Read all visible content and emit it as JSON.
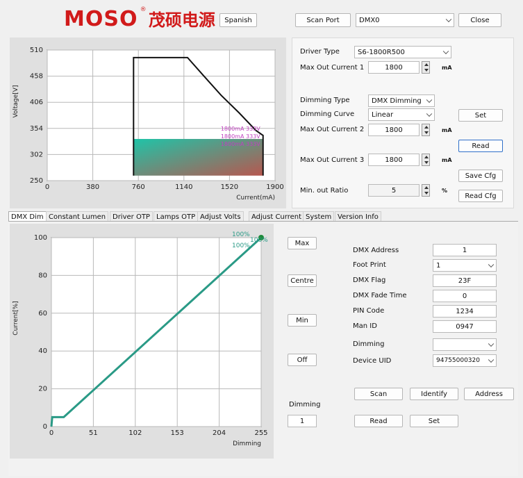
{
  "header": {
    "logo_text": "MOSO",
    "logo_cn": "茂硕电源",
    "language_button": "Spanish",
    "scan_port_button": "Scan Port",
    "port_value": "DMX0",
    "close_button": "Close"
  },
  "driver_panel": {
    "driver_type_label": "Driver Type",
    "driver_type_value": "S6-1800R500",
    "max_out_current_1_label": "Max Out Current 1",
    "max_out_current_1_value": "1800",
    "unit_ma": "mA",
    "dimming_type_label": "Dimming Type",
    "dimming_type_value": "DMX Dimming",
    "dimming_curve_label": "Dimming Curve",
    "dimming_curve_value": "Linear",
    "max_out_current_2_label": "Max Out Current 2",
    "max_out_current_2_value": "1800",
    "max_out_current_3_label": "Max Out Current 3",
    "max_out_current_3_value": "1800",
    "min_out_ratio_label": "Min. out Ratio",
    "min_out_ratio_value": "5",
    "unit_percent": "%",
    "set_button": "Set",
    "read_button": "Read",
    "save_cfg_button": "Save Cfg",
    "read_cfg_button": "Read Cfg"
  },
  "tabs": [
    "DMX Dim",
    "Constant Lumen",
    "Driver OTP",
    "Lamps OTP",
    "Adjust Volts",
    "Adjust Current",
    "System",
    "Version Info"
  ],
  "dmx_panel": {
    "max_button": "Max",
    "centre_button": "Centre",
    "min_button": "Min",
    "off_button": "Off",
    "dimming_label": "Dimming",
    "dimming_value": "1",
    "dmx_address_label": "DMX Address",
    "dmx_address_value": "1",
    "foot_print_label": "Foot Print",
    "foot_print_value": "1",
    "dmx_flag_label": "DMX Flag",
    "dmx_flag_value": "23F",
    "dmx_fade_time_label": "DMX Fade Time",
    "dmx_fade_time_value": "0",
    "pin_code_label": "PIN Code",
    "pin_code_value": "1234",
    "man_id_label": "Man ID",
    "man_id_value": "0947",
    "dimming_select_label": "Dimming",
    "dimming_select_value": "",
    "device_uid_label": "Device UID",
    "device_uid_value": "94755000320",
    "scan_button": "Scan",
    "identify_button": "Identify",
    "address_button": "Address",
    "read_button": "Read",
    "set_button": "Set"
  },
  "chart_data": [
    {
      "type": "line",
      "ylabel": "Voltage[V]",
      "xlabel": "Current(mA)",
      "xlim": [
        0,
        1900
      ],
      "ylim": [
        250,
        510
      ],
      "xticks": [
        "0",
        "380",
        "760",
        "1140",
        "1520",
        "1900"
      ],
      "yticks": [
        "510",
        "458",
        "406",
        "354",
        "302",
        "250"
      ],
      "series": [
        {
          "x": [
            720,
            720,
            1140,
            1170,
            1300,
            1450,
            1600,
            1740,
            1800,
            1800
          ],
          "y": [
            260,
            495,
            495,
            495,
            460,
            420,
            385,
            350,
            340,
            260
          ]
        }
      ],
      "operating_region": {
        "x": [
          720,
          1800
        ],
        "y": [
          260,
          333
        ]
      },
      "annotations": [
        "1800mA 333V",
        "1800mA 333V",
        "1800mA 333V"
      ],
      "colors": {
        "curve": "#111111",
        "region_start": "#1fc4a8",
        "region_end": "#b7574f",
        "annotation": "#c040c0"
      }
    },
    {
      "type": "line",
      "ylabel": "Current[%]",
      "xlabel": "Dimming",
      "xlim": [
        0,
        255
      ],
      "ylim": [
        0,
        100
      ],
      "xticks": [
        "0",
        "51",
        "102",
        "153",
        "204",
        "255"
      ],
      "yticks": [
        "100",
        "80",
        "60",
        "40",
        "20",
        "0"
      ],
      "series": [
        {
          "x": [
            0,
            1,
            15,
            255
          ],
          "y": [
            0,
            5,
            5,
            100
          ]
        }
      ],
      "annotations": [
        "100%",
        "100%",
        "100%"
      ],
      "colors": {
        "line": "#2a9a86",
        "annotation": "#2a9a86"
      }
    }
  ]
}
